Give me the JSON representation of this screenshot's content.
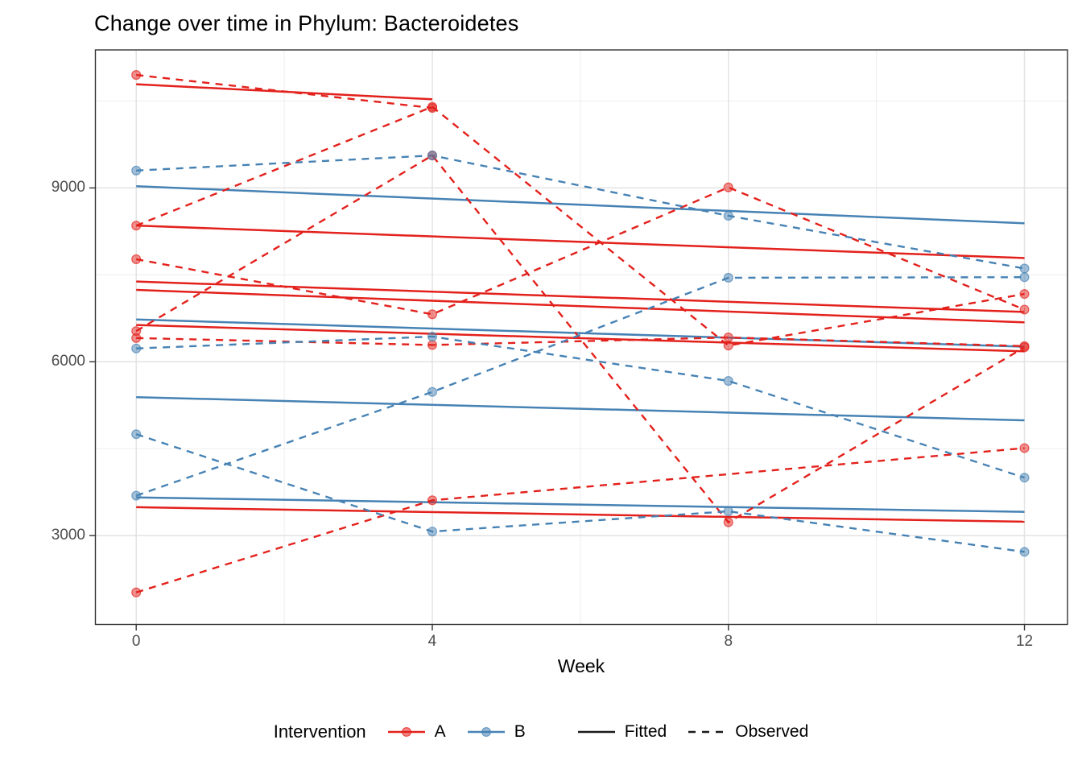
{
  "title": "Change over time in Phylum: Bacteroidetes",
  "x_axis": {
    "label": "Week",
    "ticks": [
      "0",
      "4",
      "8",
      "12"
    ]
  },
  "y_axis": {
    "ticks": [
      "9000",
      "6000",
      "3000"
    ]
  },
  "legend": {
    "intervention_label": "Intervention",
    "groups": [
      {
        "label": "A",
        "color": "#e3211c"
      },
      {
        "label": "B",
        "color": "#4682b4"
      }
    ],
    "linetypes": [
      {
        "label": "Fitted",
        "style": "solid"
      },
      {
        "label": "Observed",
        "style": "dashed"
      }
    ],
    "linetype_color": "#1a1a1a"
  },
  "colors": {
    "background": "#ffffff",
    "grid_major": "#e3e3e3",
    "grid_minor": "#efefef",
    "panel_border": "#333333",
    "tick_mark": "#333333",
    "tick_label": "#4d4d4d",
    "intervention_a": "#e3211c",
    "intervention_b": "#4682b4"
  },
  "chart_data": {
    "type": "line",
    "title": "Change over time in Phylum: Bacteroidetes",
    "xlabel": "Week",
    "ylabel": "",
    "x_weeks": [
      0,
      4,
      8,
      12
    ],
    "x_minor_weeks": [
      2,
      6,
      10
    ],
    "yticks": [
      9000,
      6000,
      3000
    ],
    "yticks_minor": [
      10500,
      7500,
      4500
    ],
    "ylim": [
      1470,
      11380
    ],
    "xlim": [
      -0.55,
      12.58
    ],
    "grid": true,
    "legend_position": "bottom",
    "series": [
      {
        "id": "A1",
        "intervention": "A",
        "observed": [
          10950,
          10380,
          null,
          null
        ],
        "fitted": {
          "weeks": [
            0,
            4
          ],
          "values": [
            10790,
            10530
          ]
        }
      },
      {
        "id": "A2",
        "intervention": "A",
        "observed": [
          8350,
          10400,
          6280,
          7170
        ],
        "fitted": {
          "weeks": [
            0,
            12
          ],
          "values": [
            8350,
            7790
          ]
        }
      },
      {
        "id": "A3",
        "intervention": "A",
        "observed": [
          7770,
          6820,
          9010,
          6900
        ],
        "fitted": {
          "weeks": [
            0,
            12
          ],
          "values": [
            7385,
            6860
          ]
        }
      },
      {
        "id": "A4",
        "intervention": "A",
        "observed": [
          6410,
          6290,
          6420,
          6270
        ],
        "fitted": {
          "weeks": [
            0,
            12
          ],
          "values": [
            6635,
            6180
          ]
        }
      },
      {
        "id": "A5",
        "intervention": "A",
        "observed": [
          6530,
          9560,
          3230,
          6250
        ],
        "fitted": {
          "weeks": [
            0,
            12
          ],
          "values": [
            7240,
            6680
          ]
        }
      },
      {
        "id": "A6",
        "intervention": "A",
        "observed": [
          2020,
          3610,
          null,
          4510
        ],
        "fitted": {
          "weeks": [
            0,
            12
          ],
          "values": [
            3490,
            3240
          ]
        }
      },
      {
        "id": "B1",
        "intervention": "B",
        "observed": [
          9300,
          9560,
          8520,
          7610
        ],
        "fitted": {
          "weeks": [
            0,
            12
          ],
          "values": [
            9030,
            8390
          ]
        }
      },
      {
        "id": "B2",
        "intervention": "B",
        "observed": [
          3690,
          5480,
          7450,
          7460
        ],
        "fitted": {
          "weeks": [
            0,
            12
          ],
          "values": [
            5390,
            4990
          ]
        }
      },
      {
        "id": "B3",
        "intervention": "B",
        "observed": [
          6230,
          6435,
          5670,
          4000
        ],
        "fitted": {
          "weeks": [
            0,
            12
          ],
          "values": [
            6730,
            6260
          ]
        }
      },
      {
        "id": "B4",
        "intervention": "B",
        "observed": [
          4750,
          3070,
          3420,
          2720
        ],
        "fitted": {
          "weeks": [
            0,
            12
          ],
          "values": [
            3660,
            3410
          ]
        }
      }
    ]
  }
}
